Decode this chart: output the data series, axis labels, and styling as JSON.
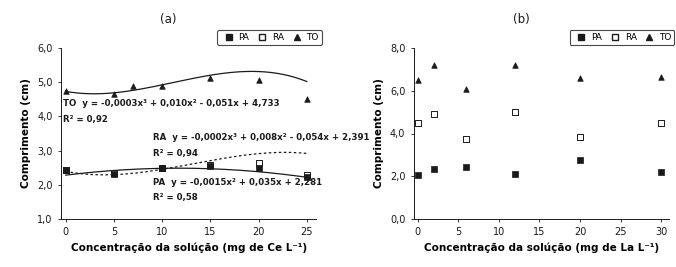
{
  "panel_a": {
    "title": "(a)",
    "xlabel": "Concentração da solúção (mg de Ce L⁻¹)",
    "ylabel": "Comprimento (cm)",
    "ylim": [
      1.0,
      6.0
    ],
    "yticks": [
      1.0,
      2.0,
      3.0,
      4.0,
      5.0,
      6.0
    ],
    "ytick_labels": [
      "1,0",
      "2,0",
      "3,0",
      "4,0",
      "5,0",
      "6,0"
    ],
    "xlim": [
      -0.5,
      26
    ],
    "xticks": [
      0,
      5,
      10,
      15,
      20,
      25
    ],
    "TO_x": [
      0,
      5,
      7,
      10,
      15,
      20,
      25
    ],
    "TO_y": [
      4.75,
      4.65,
      4.88,
      4.9,
      5.12,
      5.07,
      4.5
    ],
    "RA_x": [
      0,
      5,
      10,
      15,
      20,
      25
    ],
    "RA_y": [
      2.43,
      2.35,
      2.5,
      2.57,
      2.63,
      2.3
    ],
    "PA_x": [
      0,
      5,
      10,
      15,
      20,
      25
    ],
    "PA_y": [
      2.43,
      2.32,
      2.48,
      2.55,
      2.48,
      2.22
    ],
    "TO_eq": "TO  y = -0,0003x³ + 0,010x² - 0,051x + 4,733",
    "TO_r2": "R² = 0,92",
    "RA_eq": "RA  y = -0,0002x³ + 0,008x² - 0,054x + 2,391",
    "RA_r2": "R² = 0,94",
    "PA_eq": "PA  y = -0,0015x² + 0,035x + 2,281",
    "PA_r2": "R² = 0,58",
    "TO_coeffs": [
      -0.0003,
      0.01,
      -0.051,
      4.733
    ],
    "RA_coeffs": [
      -0.0002,
      0.008,
      -0.054,
      2.391
    ],
    "PA_coeffs": [
      0.0,
      -0.0015,
      0.035,
      2.281
    ]
  },
  "panel_b": {
    "title": "(b)",
    "xlabel": "Concentração da solúção (mg de La L⁻¹)",
    "ylabel": "Comprimento (cm)",
    "ylim": [
      0.0,
      8.0
    ],
    "yticks": [
      0.0,
      2.0,
      4.0,
      6.0,
      8.0
    ],
    "ytick_labels": [
      "0,0",
      "2,0",
      "4,0",
      "6,0",
      "8,0"
    ],
    "xlim": [
      -0.5,
      31
    ],
    "xticks": [
      0,
      5,
      10,
      15,
      20,
      25,
      30
    ],
    "TO_x": [
      0,
      2,
      6,
      12,
      20,
      30
    ],
    "TO_y": [
      6.5,
      7.2,
      6.1,
      7.2,
      6.6,
      6.65
    ],
    "RA_x": [
      0,
      2,
      6,
      12,
      20,
      30
    ],
    "RA_y": [
      4.5,
      4.9,
      3.75,
      5.0,
      3.85,
      4.5
    ],
    "PA_x": [
      0,
      2,
      6,
      12,
      20,
      30
    ],
    "PA_y": [
      2.05,
      2.35,
      2.42,
      2.1,
      2.75,
      2.18
    ]
  },
  "marker_color": "#1a1a1a",
  "bg_color": "#ffffff",
  "fontsize_label": 7.5,
  "fontsize_tick": 7,
  "fontsize_eq": 6.2,
  "fontsize_title": 8.5,
  "fontsize_legend": 6.5
}
